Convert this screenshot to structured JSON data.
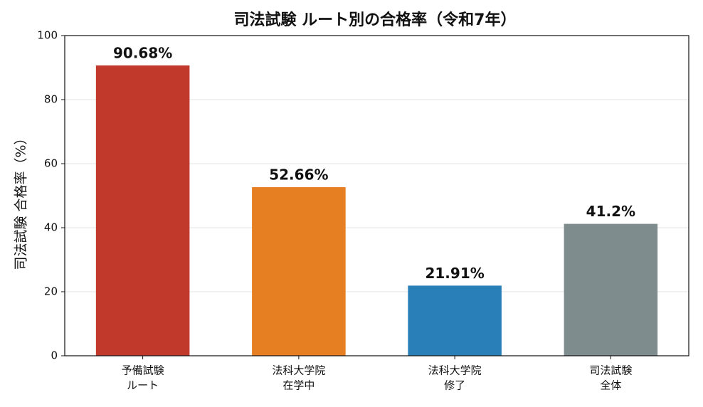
{
  "chart_data": {
    "type": "bar",
    "title": "司法試験 ルート別の合格率（令和7年）",
    "y_label": "司法試験 合格率（%）",
    "categories": [
      [
        "予備試験",
        "ルート"
      ],
      [
        "法科大学院",
        "在学中"
      ],
      [
        "法科大学院",
        "修了"
      ],
      [
        "司法試験",
        "全体"
      ]
    ],
    "values": [
      90.68,
      52.66,
      21.91,
      41.2
    ],
    "value_labels": [
      "90.68%",
      "52.66%",
      "21.91%",
      "41.2%"
    ],
    "colors": [
      "#c0392b",
      "#e67e22",
      "#2980b9",
      "#7f8c8d"
    ],
    "ylim": [
      0,
      100
    ],
    "yticks": [
      0,
      20,
      40,
      60,
      80,
      100
    ],
    "grid": true
  }
}
